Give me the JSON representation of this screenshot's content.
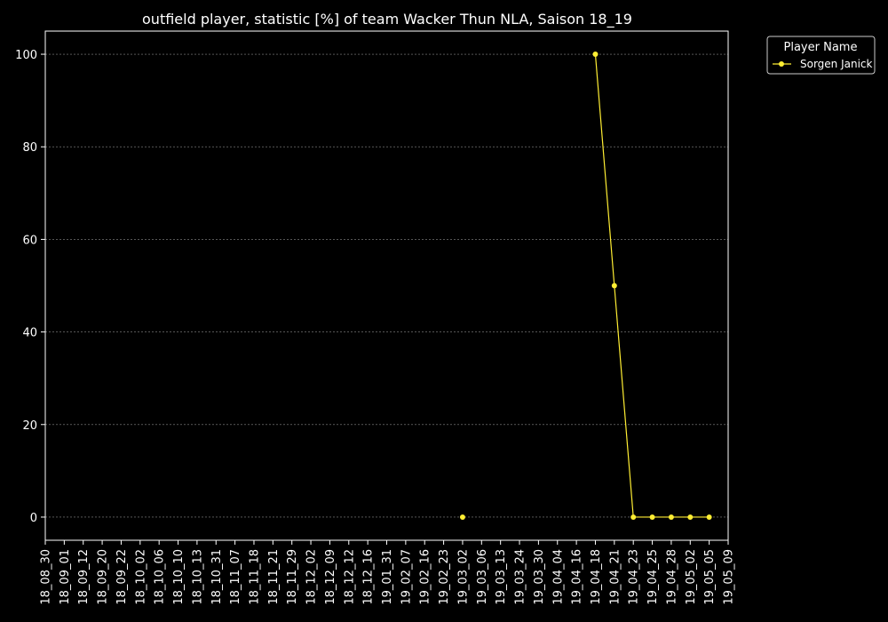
{
  "chart_data": {
    "type": "line",
    "title": "outfield player, statistic [%] of team Wacker Thun NLA, Saison 18_19",
    "xlabel": "",
    "ylabel": "",
    "categories": [
      "18_08_30",
      "18_09_01",
      "18_09_12",
      "18_09_20",
      "18_09_22",
      "18_10_02",
      "18_10_06",
      "18_10_10",
      "18_10_13",
      "18_10_31",
      "18_11_07",
      "18_11_18",
      "18_11_21",
      "18_11_29",
      "18_12_02",
      "18_12_09",
      "18_12_12",
      "18_12_16",
      "19_01_31",
      "19_02_07",
      "19_02_16",
      "19_02_23",
      "19_03_02",
      "19_03_06",
      "19_03_13",
      "19_03_24",
      "19_03_30",
      "19_04_04",
      "19_04_16",
      "19_04_18",
      "19_04_21",
      "19_04_23",
      "19_04_25",
      "19_04_28",
      "19_05_02",
      "19_05_05",
      "19_05_09"
    ],
    "yticks": [
      "0",
      "20",
      "40",
      "60",
      "80",
      "100"
    ],
    "ylim": [
      -5,
      105
    ],
    "grid": true,
    "legend": {
      "title": "Player Name",
      "placement": "top-right, outside plot"
    },
    "series": [
      {
        "name": "Sorgen Janick",
        "color": "#ffee33",
        "values": [
          null,
          null,
          null,
          null,
          null,
          null,
          null,
          null,
          null,
          null,
          null,
          null,
          null,
          null,
          null,
          null,
          null,
          null,
          null,
          null,
          null,
          null,
          0,
          null,
          null,
          null,
          null,
          null,
          null,
          100,
          50,
          0,
          0,
          0,
          0,
          0,
          null
        ]
      }
    ]
  }
}
